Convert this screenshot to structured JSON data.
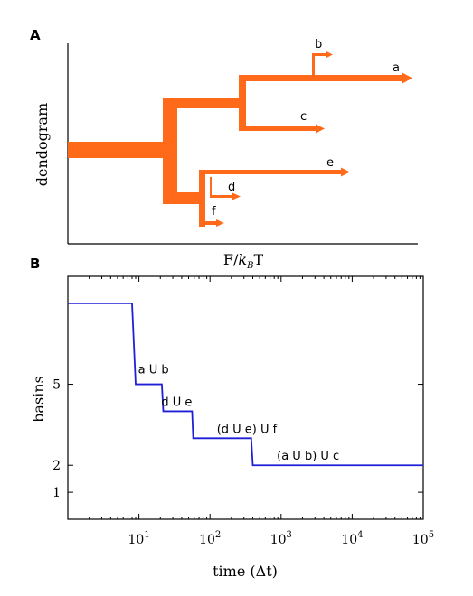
{
  "panel_a": {
    "label": "A",
    "ylabel": "dendogram",
    "xlabel_main": "F/",
    "xlabel_k": "k",
    "xlabel_sub": "B",
    "xlabel_tail": "T",
    "branch_labels": [
      "a",
      "b",
      "c",
      "d",
      "e",
      "f"
    ]
  },
  "panel_b": {
    "label": "B"
  },
  "colors": {
    "dendrogram": "#ff6a1a",
    "step_line": "#1f1fd6",
    "axes": "#000000"
  },
  "chart_data": [
    {
      "type": "dendrogram",
      "title": "",
      "ylabel": "dendogram",
      "xlabel": "F/kBT",
      "leaves": [
        "a",
        "b",
        "c",
        "d",
        "e",
        "f"
      ],
      "merges": [
        {
          "left": "a",
          "right": "b"
        },
        {
          "left": "d",
          "right": "e"
        },
        {
          "left": "(d U e)",
          "right": "f"
        },
        {
          "left": "(a U b)",
          "right": "c"
        }
      ]
    },
    {
      "type": "line",
      "step": true,
      "xlabel": "time (Δt)",
      "ylabel": "basins",
      "xscale": "log",
      "xlim": [
        1,
        100000
      ],
      "ylim": [
        0,
        9
      ],
      "xticks": [
        {
          "base": "10",
          "exp": "1"
        },
        {
          "base": "10",
          "exp": "2"
        },
        {
          "base": "10",
          "exp": "3"
        },
        {
          "base": "10",
          "exp": "4"
        },
        {
          "base": "10",
          "exp": "5"
        }
      ],
      "yticks": [
        "1",
        "2",
        "5"
      ],
      "series": [
        {
          "x": [
            1,
            8,
            9,
            21,
            22,
            56,
            58,
            380,
            400,
            100000
          ],
          "y": [
            8,
            8,
            5,
            5,
            4,
            4,
            3,
            3,
            2,
            2
          ]
        }
      ],
      "annotations": [
        {
          "text": "a U b",
          "x": 16,
          "y": 5.4
        },
        {
          "text": "d U e",
          "x": 34,
          "y": 4.2
        },
        {
          "text": "(d U e) U f",
          "x": 330,
          "y": 3.2
        },
        {
          "text": "(a U b) U c",
          "x": 2400,
          "y": 2.2
        }
      ],
      "grid": false
    }
  ]
}
